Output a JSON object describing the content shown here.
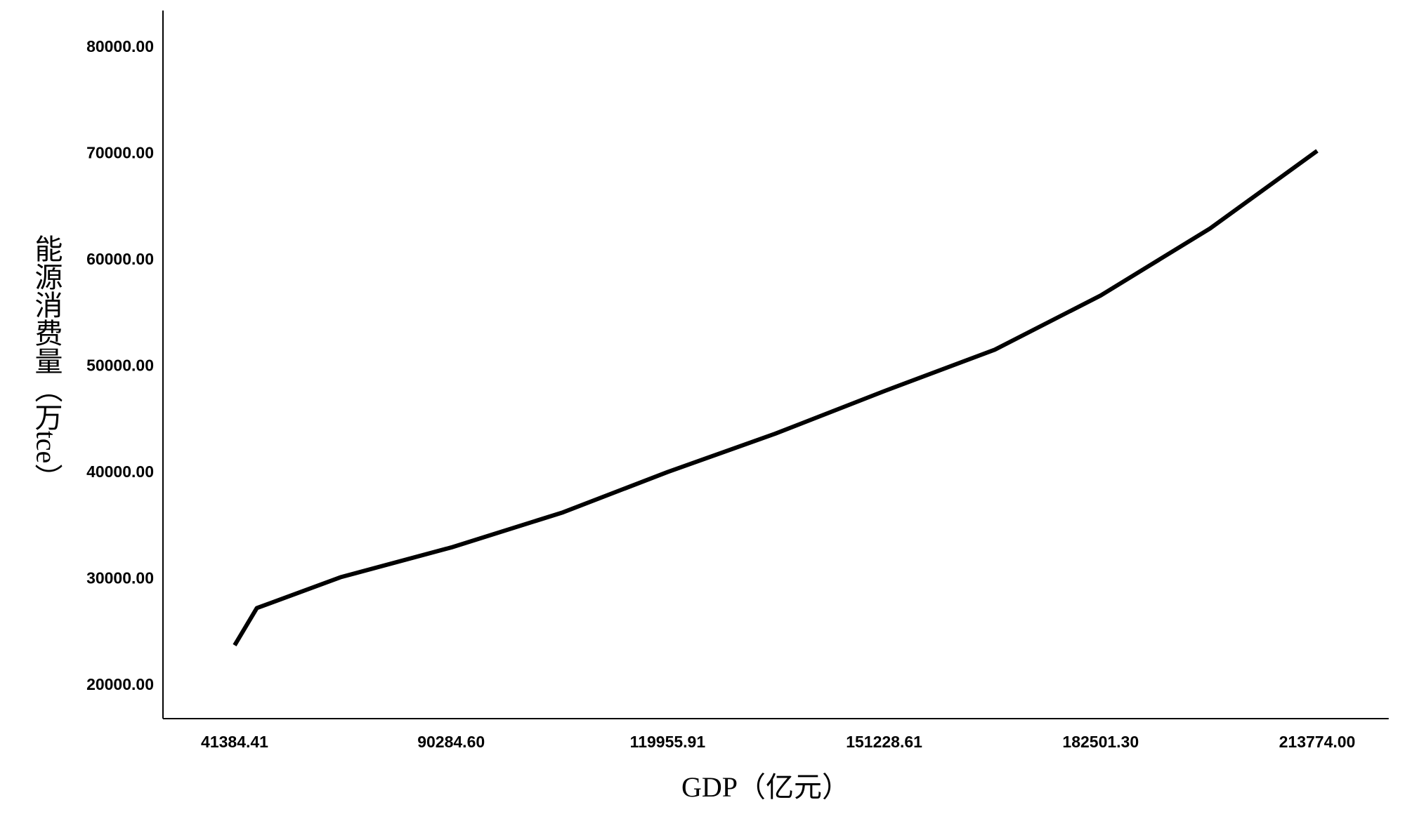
{
  "chart_data": {
    "type": "line",
    "x_label": "GDP（亿元）",
    "y_label": "能源消费量（万tce）",
    "x": [
      41384.41,
      46400,
      65300,
      90300,
      105600,
      119956,
      135500,
      151229,
      167200,
      182501,
      198300,
      213774
    ],
    "series": [
      {
        "color": "#000000",
        "values": [
          23800,
          27300,
          30200,
          33000,
          36300,
          40100,
          43700,
          47700,
          51600,
          56700,
          63000,
          70300
        ]
      }
    ],
    "xlim": [
      25200,
      224100
    ],
    "xticks": [
      {
        "value": 41384.41,
        "label": "41384.41"
      },
      {
        "value": 90284.6,
        "label": "90284.60"
      },
      {
        "value": 119955.91,
        "label": "119955.91"
      },
      {
        "value": 151228.61,
        "label": "151228.61"
      },
      {
        "value": 182501.3,
        "label": "182501.30"
      },
      {
        "value": 213774,
        "label": "213774.00"
      }
    ],
    "ylim": [
      16900,
      83500
    ],
    "yticks": [
      {
        "value": 20000,
        "label": "20000.00"
      },
      {
        "value": 30000,
        "label": "30000.00"
      },
      {
        "value": 40000,
        "label": "40000.00"
      },
      {
        "value": 50000,
        "label": "50000.00"
      },
      {
        "value": 60000,
        "label": "60000.00"
      },
      {
        "value": 70000,
        "label": "70000.00"
      },
      {
        "value": 80000,
        "label": "80000.00"
      }
    ],
    "grid": false
  }
}
